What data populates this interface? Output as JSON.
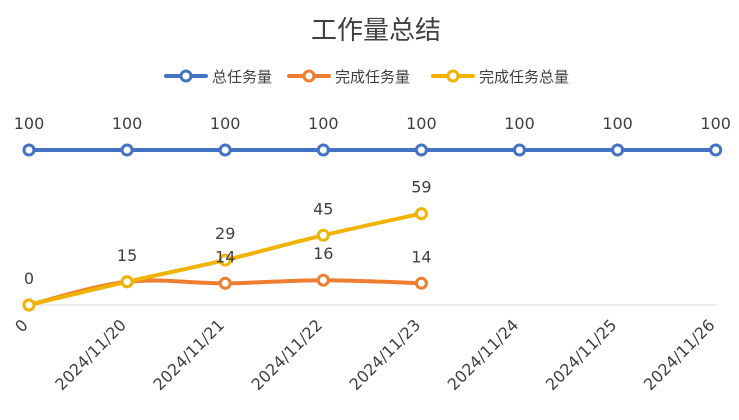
{
  "chart_data": {
    "type": "line",
    "title": "工作量总结",
    "categories": [
      "0",
      "2024/11/20",
      "2024/11/21",
      "2024/11/22",
      "2024/11/23",
      "2024/11/24",
      "2024/11/25",
      "2024/11/26"
    ],
    "series": [
      {
        "name": "总任务量",
        "color": "#4472C4",
        "values": [
          100,
          100,
          100,
          100,
          100,
          100,
          100,
          100
        ],
        "labels": [
          "100",
          "100",
          "100",
          "100",
          "100",
          "100",
          "100",
          "100"
        ]
      },
      {
        "name": "完成任务量",
        "color": "#ED7D31",
        "values": [
          0,
          15,
          14,
          16,
          14,
          null,
          null,
          null
        ],
        "labels": [
          null,
          null,
          "14",
          "16",
          "14",
          null,
          null,
          null
        ]
      },
      {
        "name": "完成任务总量",
        "color": "#F0B400",
        "values": [
          0,
          15,
          29,
          45,
          59,
          null,
          null,
          null
        ],
        "labels": [
          "0",
          "15",
          "29",
          "45",
          "59",
          null,
          null,
          null
        ]
      }
    ],
    "legend_position": "top",
    "grid": false,
    "xlabel": "",
    "ylabel": ""
  }
}
